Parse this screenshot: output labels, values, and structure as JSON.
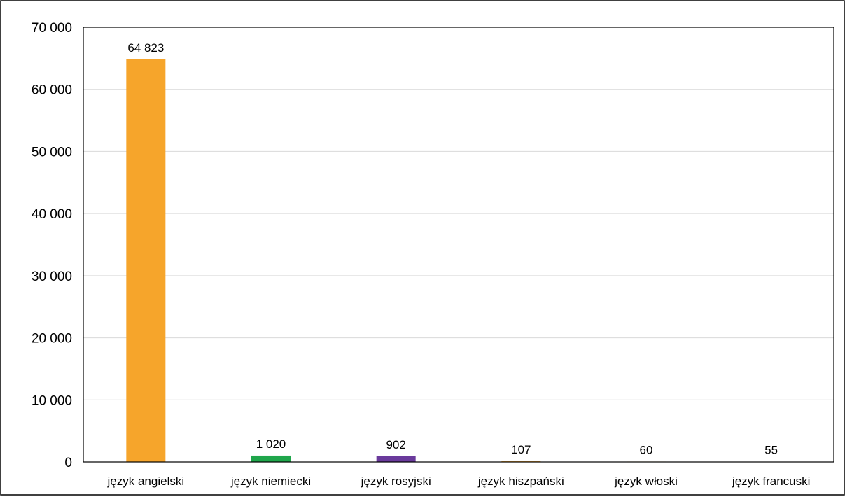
{
  "chart_data": {
    "type": "bar",
    "categories": [
      "język angielski",
      "język niemiecki",
      "język rosyjski",
      "język hiszpański",
      "język włoski",
      "język francuski"
    ],
    "values": [
      64823,
      1020,
      902,
      107,
      60,
      55
    ],
    "value_labels": [
      "64 823",
      "1 020",
      "902",
      "107",
      "60",
      "55"
    ],
    "colors": [
      "#F6A52B",
      "#1FA64B",
      "#6A3A9C",
      "#F6A52B",
      "#F6A52B",
      "#F6A52B"
    ],
    "ylim": [
      0,
      70000
    ],
    "yticks": [
      0,
      10000,
      20000,
      30000,
      40000,
      50000,
      60000,
      70000
    ],
    "ytick_labels": [
      "0",
      "10 000",
      "20 000",
      "30 000",
      "40 000",
      "50 000",
      "60 000",
      "70 000"
    ],
    "grid": true,
    "gridline_color": "#D9D9D9",
    "title": "",
    "xlabel": "",
    "ylabel": ""
  }
}
